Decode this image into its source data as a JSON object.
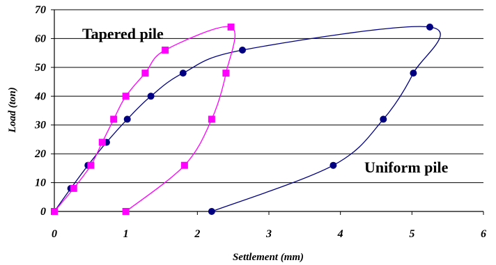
{
  "chart_data": {
    "type": "scatter",
    "title": "",
    "xlabel": "Settlement (mm)",
    "ylabel": "Load (ton)",
    "xlim": [
      0,
      6
    ],
    "ylim": [
      0,
      70
    ],
    "x_ticks": [
      "0",
      "1",
      "2",
      "3",
      "4",
      "5",
      "6"
    ],
    "y_ticks": [
      "0",
      "10",
      "20",
      "30",
      "40",
      "50",
      "60",
      "70"
    ],
    "grid": "horizontal",
    "legend": "none",
    "annotations": [
      "Tapered pile",
      "Uniform pile"
    ],
    "series": [
      {
        "name": "Uniform pile",
        "color": "#000080",
        "marker": "circle",
        "points": [
          {
            "x": 0.0,
            "y": 0
          },
          {
            "x": 0.23,
            "y": 8
          },
          {
            "x": 0.47,
            "y": 16
          },
          {
            "x": 0.73,
            "y": 24
          },
          {
            "x": 1.02,
            "y": 32
          },
          {
            "x": 1.35,
            "y": 40
          },
          {
            "x": 1.8,
            "y": 48
          },
          {
            "x": 2.63,
            "y": 56
          },
          {
            "x": 5.25,
            "y": 64
          },
          {
            "x": 5.02,
            "y": 48
          },
          {
            "x": 4.6,
            "y": 32
          },
          {
            "x": 3.9,
            "y": 16
          },
          {
            "x": 2.2,
            "y": 0
          }
        ]
      },
      {
        "name": "Tapered pile",
        "color": "#ff00ff",
        "marker": "square",
        "points": [
          {
            "x": 0.0,
            "y": 0
          },
          {
            "x": 0.27,
            "y": 8
          },
          {
            "x": 0.51,
            "y": 16
          },
          {
            "x": 0.67,
            "y": 24
          },
          {
            "x": 0.83,
            "y": 32
          },
          {
            "x": 1.0,
            "y": 40
          },
          {
            "x": 1.27,
            "y": 48
          },
          {
            "x": 1.55,
            "y": 56
          },
          {
            "x": 2.47,
            "y": 64
          },
          {
            "x": 2.4,
            "y": 48
          },
          {
            "x": 2.2,
            "y": 32
          },
          {
            "x": 1.82,
            "y": 16
          },
          {
            "x": 1.0,
            "y": 0
          }
        ]
      }
    ]
  }
}
